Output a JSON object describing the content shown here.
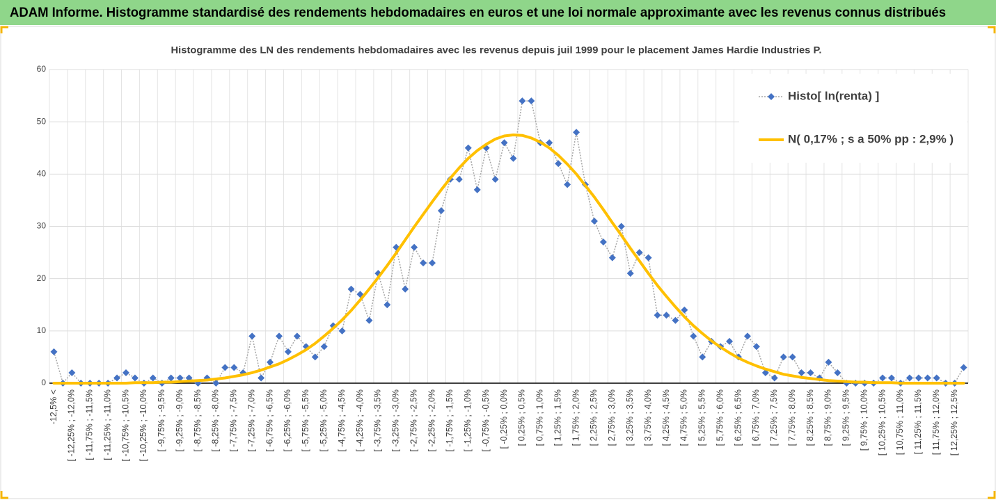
{
  "header": {
    "title": "ADAM Informe. Histogramme standardisé des rendements hebdomadaires en euros et une loi normale approximante avec les revenus connus distribués"
  },
  "chart_data": {
    "type": "line",
    "title": "Histogramme des LN des rendements hebdomadaires avec les revenus depuis juil 1999 pour le placement James Hardie Industries P.",
    "categories": [
      "-12,5% <",
      null,
      "[ -12,25% ; -12,0%",
      null,
      "[ -11,75% ; -11,5%",
      null,
      "[ -11,25% ; -11,0%",
      null,
      "[ -10,75% ; -10,5%",
      null,
      "[ -10,25% ; -10,0%",
      null,
      "[ -9,75% ; -9,5%",
      null,
      "[ -9,25% ; -9,0%",
      null,
      "[ -8,75% ; -8,5%",
      null,
      "[ -8,25% ; -8,0%",
      null,
      "[ -7,75% ; -7,5%",
      null,
      "[ -7,25% ; -7,0%",
      null,
      "[ -6,75% ; -6,5%",
      null,
      "[ -6,25% ; -6,0%",
      null,
      "[ -5,75% ; -5,5%",
      null,
      "[ -5,25% ; -5,0%",
      null,
      "[ -4,75% ; -4,5%",
      null,
      "[ -4,25% ; -4,0%",
      null,
      "[ -3,75% ; -3,5%",
      null,
      "[ -3,25% ; -3,0%",
      null,
      "[ -2,75% ; -2,5%",
      null,
      "[ -2,25% ; -2,0%",
      null,
      "[ -1,75% ; -1,5%",
      null,
      "[ -1,25% ; -1,0%",
      null,
      "[ -0,75% ; -0,5%",
      null,
      "[ -0,25% ; 0,0%",
      null,
      "[ 0,25% ; 0,5%",
      null,
      "[ 0,75% ; 1,0%",
      null,
      "[ 1,25% ; 1,5%",
      null,
      "[ 1,75% ; 2,0%",
      null,
      "[ 2,25% ; 2,5%",
      null,
      "[ 2,75% ; 3,0%",
      null,
      "[ 3,25% ; 3,5%",
      null,
      "[ 3,75% ; 4,0%",
      null,
      "[ 4,25% ; 4,5%",
      null,
      "[ 4,75% ; 5,0%",
      null,
      "[ 5,25% ; 5,5%",
      null,
      "[ 5,75% ; 6,0%",
      null,
      "[ 6,25% ; 6,5%",
      null,
      "[ 6,75% ; 7,0%",
      null,
      "[ 7,25% ; 7,5%",
      null,
      "[ 7,75% ; 8,0%",
      null,
      "[ 8,25% ; 8,5%",
      null,
      "[ 8,75% ; 9,0%",
      null,
      "[ 9,25% ; 9,5%",
      null,
      "[ 9,75% ; 10,0%",
      null,
      "[ 10,25% ; 10,5%",
      null,
      "[ 10,75% ; 11,0%",
      null,
      "[ 11,25% ; 11,5%",
      null,
      "[ 11,75% ; 12,0%",
      null,
      "[ 12,25% ; 12,5%",
      null
    ],
    "series": [
      {
        "name": "Histo[ ln(renta) ]",
        "color": "#4472c4",
        "line_color": "#a5a5a5",
        "marker": "diamond",
        "values": [
          6,
          0,
          2,
          0,
          0,
          0,
          0,
          1,
          2,
          1,
          0,
          1,
          0,
          1,
          1,
          1,
          0,
          1,
          0,
          3,
          3,
          2,
          9,
          1,
          4,
          9,
          6,
          9,
          7,
          5,
          7,
          11,
          10,
          18,
          17,
          12,
          21,
          15,
          26,
          18,
          26,
          23,
          23,
          33,
          39,
          39,
          45,
          37,
          45,
          39,
          46,
          43,
          54,
          54,
          46,
          46,
          42,
          38,
          48,
          38,
          31,
          27,
          24,
          30,
          21,
          25,
          24,
          13,
          13,
          12,
          14,
          9,
          5,
          8,
          7,
          8,
          5,
          9,
          7,
          2,
          1,
          5,
          5,
          2,
          2,
          1,
          4,
          2,
          0,
          0,
          0,
          0,
          1,
          1,
          0,
          1,
          1,
          1,
          1,
          0,
          0,
          3
        ]
      },
      {
        "name": "N( 0,17% ; s a 50% pp : 2,9% )",
        "color": "#ffc000",
        "marker": "none",
        "values": [
          0,
          0,
          0,
          0,
          0,
          0,
          0,
          0,
          0,
          0.1,
          0.1,
          0.1,
          0.2,
          0.2,
          0.3,
          0.4,
          0.5,
          0.6,
          0.8,
          1.0,
          1.3,
          1.6,
          2.0,
          2.5,
          3.1,
          3.7,
          4.5,
          5.4,
          6.4,
          7.6,
          9.0,
          10.5,
          12.1,
          13.9,
          15.9,
          18.0,
          20.2,
          22.5,
          24.9,
          27.4,
          29.9,
          32.3,
          34.7,
          37.0,
          39.2,
          41.2,
          43.0,
          44.5,
          45.7,
          46.7,
          47.3,
          47.5,
          47.4,
          46.9,
          46.1,
          45.0,
          43.6,
          41.9,
          40.0,
          37.8,
          35.6,
          33.2,
          30.7,
          28.3,
          25.8,
          23.4,
          21.0,
          18.7,
          16.6,
          14.6,
          12.7,
          11.0,
          9.5,
          8.1,
          6.9,
          5.8,
          4.8,
          4.0,
          3.3,
          2.7,
          2.2,
          1.7,
          1.4,
          1.1,
          0.9,
          0.7,
          0.5,
          0.4,
          0.3,
          0.2,
          0.2,
          0.1,
          0.1,
          0.1,
          0,
          0,
          0,
          0,
          0,
          0,
          0,
          0
        ]
      }
    ],
    "ylim": [
      0,
      60
    ],
    "yticks": [
      0,
      10,
      20,
      30,
      40,
      50,
      60
    ],
    "grid": true,
    "legend": "top-right"
  }
}
